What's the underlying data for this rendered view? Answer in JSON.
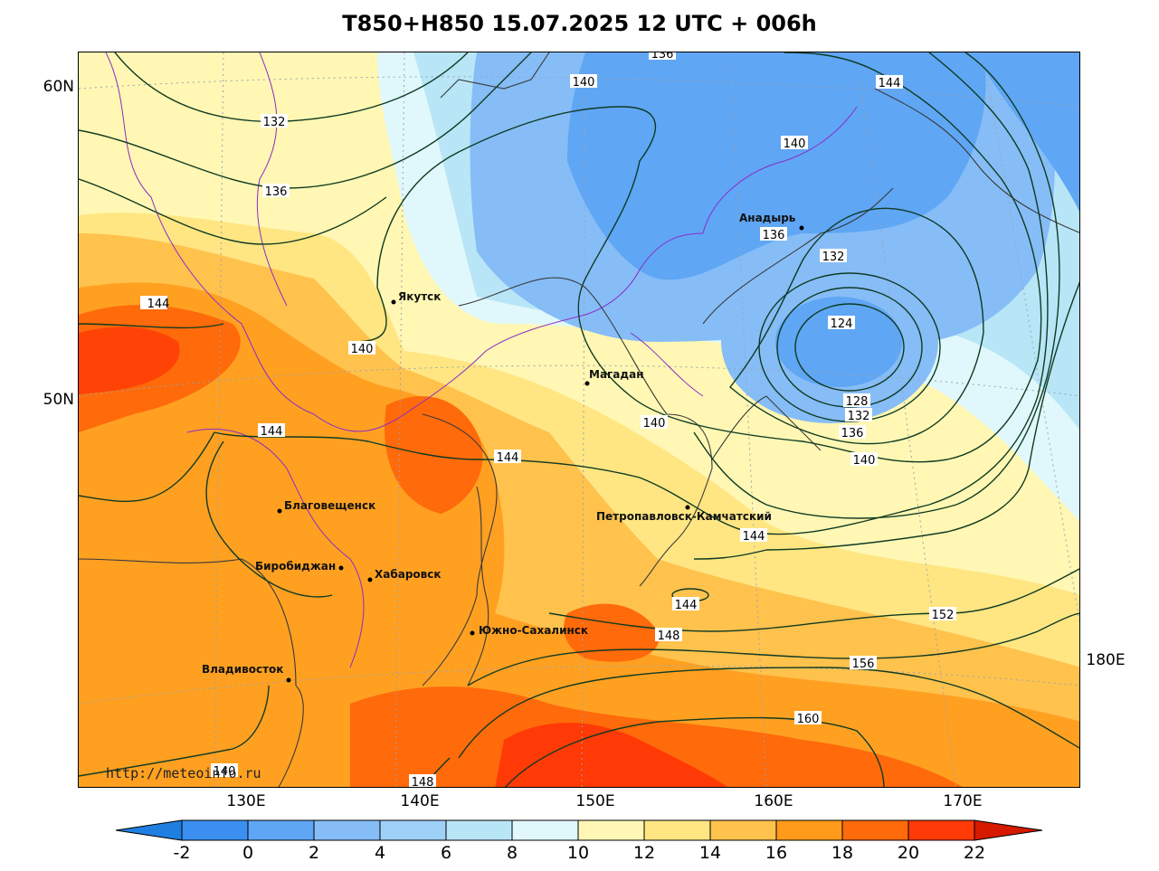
{
  "title": "T850+H850 15.07.2025 12 UTC + 006h",
  "watermark": "http://meteoinfo.ru",
  "lat_labels": [
    "60N",
    "50N"
  ],
  "lon_labels": [
    "130E",
    "140E",
    "150E",
    "160E",
    "170E",
    "180E"
  ],
  "cities": [
    {
      "name": "Якутск"
    },
    {
      "name": "Магадан"
    },
    {
      "name": "Анадырь"
    },
    {
      "name": "Петропавловск-Камчатский"
    },
    {
      "name": "Благовещенск"
    },
    {
      "name": "Биробиджан"
    },
    {
      "name": "Хабаровск"
    },
    {
      "name": "Южно-Сахалинск"
    },
    {
      "name": "Владивосток"
    }
  ],
  "isoline_labels": [
    "136",
    "140",
    "144",
    "132",
    "136",
    "140",
    "144",
    "140",
    "136",
    "132",
    "124",
    "128",
    "132",
    "136",
    "140",
    "140",
    "144",
    "144",
    "144",
    "144",
    "148",
    "152",
    "156",
    "160",
    "140",
    "148"
  ],
  "colorbar": {
    "ticks": [
      "-2",
      "0",
      "2",
      "4",
      "6",
      "8",
      "10",
      "12",
      "14",
      "16",
      "18",
      "20",
      "22"
    ],
    "colors": [
      "#1f7fe0",
      "#3a8ff0",
      "#5fa6f5",
      "#86bdf7",
      "#b8e6f7",
      "#e0f8fb",
      "#fff7b3",
      "#ffe682",
      "#ffc24d",
      "#ff9a1a",
      "#ff6a0a",
      "#ff3a06",
      "#d61a00"
    ]
  },
  "colors": {
    "contour": "#0f3a22",
    "border_country": "#3a3a3a",
    "border_region": "#8a2cc8",
    "grid": "#9aa3b3"
  }
}
